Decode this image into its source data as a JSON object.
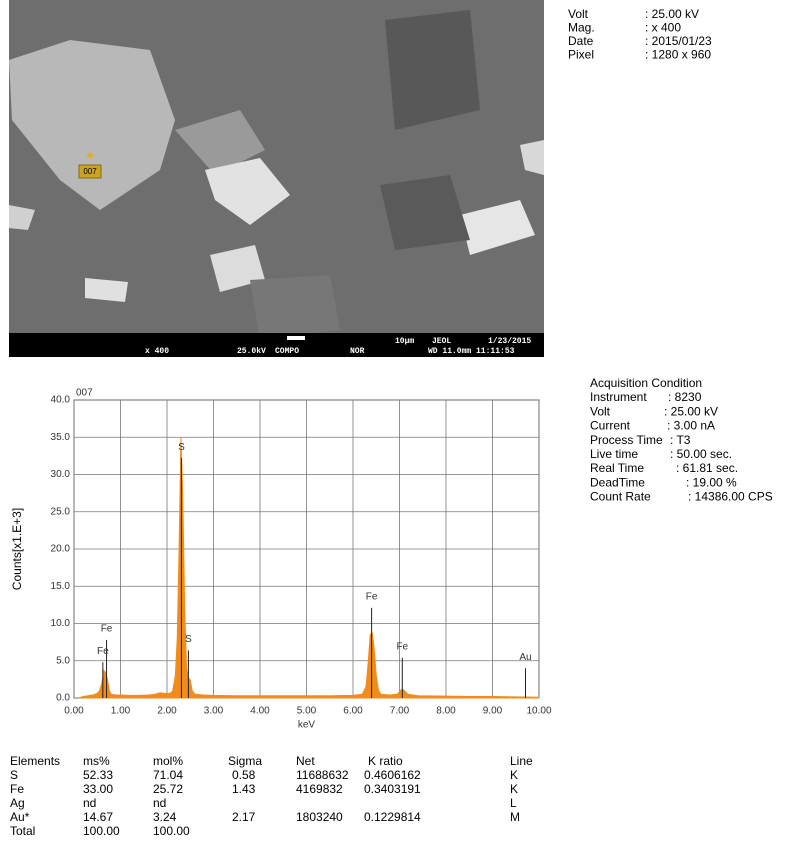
{
  "image_info": {
    "marker": "007",
    "bar_texts": [
      "x 400",
      "25.0kV",
      "COMPO",
      "NOR",
      "WD 11.0mm 11:11:53",
      "10µm",
      "JEOL",
      "1/23/2015"
    ],
    "meta": [
      {
        "label": "Volt",
        "value": ": 25.00 kV"
      },
      {
        "label": "Mag.",
        "value": ": x 400"
      },
      {
        "label": "Date",
        "value": ": 2015/01/23"
      },
      {
        "label": "Pixel",
        "value": ": 1280 x 960"
      }
    ]
  },
  "chart_data": {
    "type": "line",
    "title": "007",
    "xlabel": "keV",
    "ylabel": "Counts[x1.E+3]",
    "xlim": [
      0,
      10
    ],
    "ylim": [
      0,
      40
    ],
    "xticks": [
      {
        "value": 0,
        "label": "0.00"
      },
      {
        "value": 1,
        "label": "1.00"
      },
      {
        "value": 2,
        "label": "2.00"
      },
      {
        "value": 3,
        "label": "3.00"
      },
      {
        "value": 4,
        "label": "4.00"
      },
      {
        "value": 5,
        "label": "5.00"
      },
      {
        "value": 6,
        "label": "6.00"
      },
      {
        "value": 7,
        "label": "7.00"
      },
      {
        "value": 8,
        "label": "8.00"
      },
      {
        "value": 9,
        "label": "9.00"
      },
      {
        "value": 10,
        "label": "10.00"
      }
    ],
    "yticks": [
      {
        "value": 0,
        "label": "0.0"
      },
      {
        "value": 5,
        "label": "5.0"
      },
      {
        "value": 10,
        "label": "10.0"
      },
      {
        "value": 15,
        "label": "15.0"
      },
      {
        "value": 20,
        "label": "20.0"
      },
      {
        "value": 25,
        "label": "25.0"
      },
      {
        "value": 30,
        "label": "30.0"
      },
      {
        "value": 35,
        "label": "35.0"
      },
      {
        "value": 40,
        "label": "40.0"
      }
    ],
    "grid": true,
    "x": [
      0.1,
      0.2,
      0.3,
      0.4,
      0.5,
      0.55,
      0.6,
      0.64,
      0.68,
      0.72,
      0.76,
      0.8,
      0.9,
      1.0,
      1.2,
      1.4,
      1.6,
      1.75,
      1.85,
      1.95,
      2.05,
      2.12,
      2.18,
      2.22,
      2.26,
      2.3,
      2.34,
      2.38,
      2.42,
      2.46,
      2.5,
      2.54,
      2.6,
      2.8,
      3.0,
      3.5,
      4.0,
      4.5,
      5.0,
      5.5,
      6.0,
      6.2,
      6.28,
      6.33,
      6.37,
      6.41,
      6.45,
      6.5,
      6.55,
      6.6,
      6.8,
      6.95,
      7.02,
      7.06,
      7.1,
      7.18,
      7.4,
      8.0,
      8.5,
      9.0,
      9.5,
      10.0
    ],
    "series": [
      {
        "color": "#f08c1a",
        "values": [
          0,
          0.2,
          0.3,
          0.4,
          0.6,
          1.0,
          2.0,
          3.7,
          3.4,
          2.5,
          1.0,
          0.5,
          0.4,
          0.4,
          0.35,
          0.35,
          0.4,
          0.5,
          0.7,
          0.6,
          0.6,
          0.9,
          3,
          8,
          20,
          35,
          27,
          12,
          4,
          2.7,
          2.4,
          1.0,
          0.5,
          0.4,
          0.35,
          0.3,
          0.3,
          0.3,
          0.3,
          0.3,
          0.35,
          0.5,
          1.5,
          5,
          8.5,
          8.8,
          7,
          3,
          1,
          0.5,
          0.4,
          0.5,
          1.0,
          1.2,
          1.0,
          0.5,
          0.3,
          0.25,
          0.2,
          0.2,
          0.15,
          0.1
        ]
      }
    ],
    "annotations": [
      {
        "text": "Fe",
        "x": 0.7,
        "y": 7.8
      },
      {
        "text": "Fe",
        "x": 0.62,
        "y": 4.8
      },
      {
        "text": "S",
        "x": 2.31,
        "y": 32.2
      },
      {
        "text": "S",
        "x": 2.46,
        "y": 6.4
      },
      {
        "text": "Fe",
        "x": 6.4,
        "y": 12.1
      },
      {
        "text": "Fe",
        "x": 7.06,
        "y": 5.4
      },
      {
        "text": "Au",
        "x": 9.71,
        "y": 4.0
      }
    ]
  },
  "acquisition": {
    "title": "Acquisition Condition",
    "rows": [
      {
        "label": "Instrument",
        "value": ": 8230"
      },
      {
        "label": "Volt",
        "value": ": 25.00 kV"
      },
      {
        "label": "Current",
        "value": ": 3.00 nA"
      },
      {
        "label": "Process Time",
        "value": ": T3"
      },
      {
        "label": "Live time",
        "value": ": 50.00 sec."
      },
      {
        "label": "Real Time",
        "value": ": 61.81 sec."
      },
      {
        "label": "DeadTime",
        "value": ": 19.00 %"
      },
      {
        "label": "Count Rate",
        "value": ": 14386.00 CPS"
      }
    ]
  },
  "table": {
    "header": [
      "Elements",
      "ms%",
      "mol%",
      "Sigma",
      "Net",
      "K ratio",
      "Line"
    ],
    "rows": [
      [
        "S",
        "52.33",
        "71.04",
        "0.58",
        "11688632",
        "0.4606162",
        "K"
      ],
      [
        "Fe",
        "33.00",
        "25.72",
        "1.43",
        "4169832",
        "0.3403191",
        "K"
      ],
      [
        "Ag",
        "nd",
        "nd",
        "",
        "",
        "",
        "L"
      ],
      [
        "Au*",
        "14.67",
        "3.24",
        "2.17",
        "1803240",
        "0.1229814",
        "M"
      ],
      [
        "Total",
        "100.00",
        "100.00",
        "",
        "",
        "",
        ""
      ]
    ]
  }
}
